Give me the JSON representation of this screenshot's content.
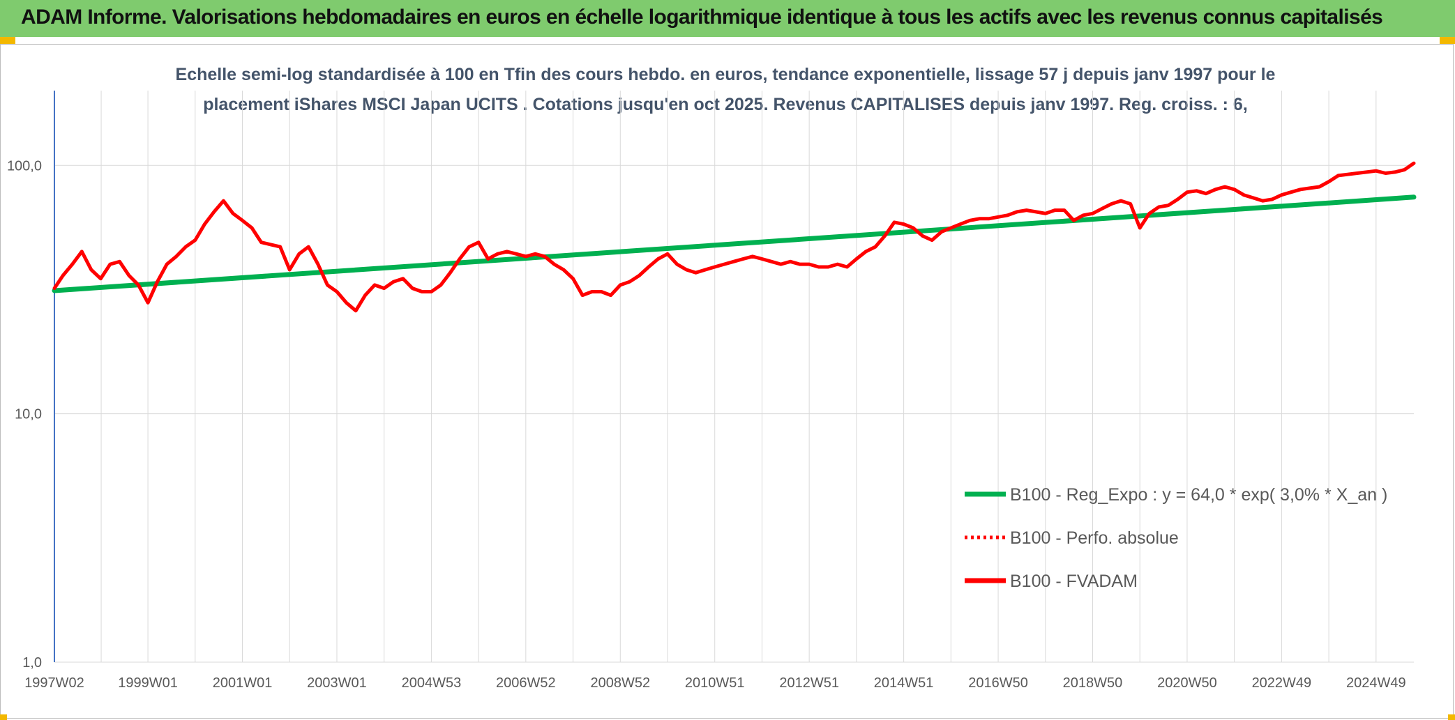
{
  "header": {
    "title": "ADAM Informe. Valorisations hebdomadaires en euros en échelle logarithmique identique à tous les actifs avec les revenus connus capitalisés"
  },
  "colors": {
    "header_bg": "#7fcb6e",
    "corner_accent": "#f3b800",
    "trend_green": "#00b050",
    "series_red": "#ff0000",
    "grid": "#d9d9d9",
    "axis_blue": "#4472c4",
    "subtitle": "#44546a"
  },
  "chart_data": {
    "type": "line",
    "subtitle_lines": [
      "Echelle semi-log standardisée à 100 en Tfin des cours hebdo. en euros, tendance exponentielle, lissage 57 j depuis janv 1997 pour le",
      "placement iShares MSCI Japan UCITS . Cotations jusqu'en oct 2025. Revenus CAPITALISES depuis janv 1997. Reg. croiss. : 6,"
    ],
    "y_scale": "log",
    "ylim": [
      1,
      200
    ],
    "y_ticks": [
      {
        "value": 100,
        "label": "100,0"
      },
      {
        "value": 10,
        "label": "10,0"
      },
      {
        "value": 1,
        "label": "1,0"
      }
    ],
    "xlim": [
      1997.02,
      2025.8
    ],
    "x_ticks": [
      {
        "value": 1997.02,
        "label": "1997W02"
      },
      {
        "value": 1999.0,
        "label": "1999W01"
      },
      {
        "value": 2001.0,
        "label": "2001W01"
      },
      {
        "value": 2003.0,
        "label": "2003W01"
      },
      {
        "value": 2005.0,
        "label": "2004W53"
      },
      {
        "value": 2007.0,
        "label": "2006W52"
      },
      {
        "value": 2009.0,
        "label": "2008W52"
      },
      {
        "value": 2011.0,
        "label": "2010W51"
      },
      {
        "value": 2013.0,
        "label": "2012W51"
      },
      {
        "value": 2015.0,
        "label": "2014W51"
      },
      {
        "value": 2017.0,
        "label": "2016W50"
      },
      {
        "value": 2019.0,
        "label": "2018W50"
      },
      {
        "value": 2021.0,
        "label": "2020W50"
      },
      {
        "value": 2023.0,
        "label": "2022W49"
      },
      {
        "value": 2025.0,
        "label": "2024W49"
      }
    ],
    "legend_position": "bottom-right",
    "grid": true,
    "series": [
      {
        "name": "B100 - Reg_Expo : y = 64,0 * exp( 3,0% *  X_an )",
        "color": "#00b050",
        "style": "solid",
        "x": [
          1997.02,
          2025.8
        ],
        "y": [
          31.3,
          74.5
        ]
      },
      {
        "name": "B100 - Perfo. absolue",
        "color": "#ff0000",
        "style": "dotted",
        "x": [],
        "y": []
      },
      {
        "name": "B100 - FVADAM",
        "color": "#ff0000",
        "style": "solid",
        "x": [
          1997.02,
          1997.2,
          1997.4,
          1997.6,
          1997.8,
          1998.0,
          1998.2,
          1998.4,
          1998.6,
          1998.8,
          1999.0,
          1999.2,
          1999.4,
          1999.6,
          1999.8,
          2000.0,
          2000.2,
          2000.4,
          2000.6,
          2000.8,
          2001.0,
          2001.2,
          2001.4,
          2001.6,
          2001.8,
          2002.0,
          2002.2,
          2002.4,
          2002.6,
          2002.8,
          2003.0,
          2003.2,
          2003.4,
          2003.6,
          2003.8,
          2004.0,
          2004.2,
          2004.4,
          2004.6,
          2004.8,
          2005.0,
          2005.2,
          2005.4,
          2005.6,
          2005.8,
          2006.0,
          2006.2,
          2006.4,
          2006.6,
          2006.8,
          2007.0,
          2007.2,
          2007.4,
          2007.6,
          2007.8,
          2008.0,
          2008.2,
          2008.4,
          2008.6,
          2008.8,
          2009.0,
          2009.2,
          2009.4,
          2009.6,
          2009.8,
          2010.0,
          2010.2,
          2010.4,
          2010.6,
          2010.8,
          2011.0,
          2011.2,
          2011.4,
          2011.6,
          2011.8,
          2012.0,
          2012.2,
          2012.4,
          2012.6,
          2012.8,
          2013.0,
          2013.2,
          2013.4,
          2013.6,
          2013.8,
          2014.0,
          2014.2,
          2014.4,
          2014.6,
          2014.8,
          2015.0,
          2015.2,
          2015.4,
          2015.6,
          2015.8,
          2016.0,
          2016.2,
          2016.4,
          2016.6,
          2016.8,
          2017.0,
          2017.2,
          2017.4,
          2017.6,
          2017.8,
          2018.0,
          2018.2,
          2018.4,
          2018.6,
          2018.8,
          2019.0,
          2019.2,
          2019.4,
          2019.6,
          2019.8,
          2020.0,
          2020.2,
          2020.4,
          2020.6,
          2020.8,
          2021.0,
          2021.2,
          2021.4,
          2021.6,
          2021.8,
          2022.0,
          2022.2,
          2022.4,
          2022.6,
          2022.8,
          2023.0,
          2023.2,
          2023.4,
          2023.6,
          2023.8,
          2024.0,
          2024.2,
          2024.4,
          2024.6,
          2024.8,
          2025.0,
          2025.2,
          2025.4,
          2025.6,
          2025.8
        ],
        "y": [
          32,
          36,
          40,
          45,
          38,
          35,
          40,
          41,
          36,
          33,
          28,
          34,
          40,
          43,
          47,
          50,
          58,
          65,
          72,
          64,
          60,
          56,
          49,
          48,
          47,
          38,
          44,
          47,
          40,
          33,
          31,
          28,
          26,
          30,
          33,
          32,
          34,
          35,
          32,
          31,
          31,
          33,
          37,
          42,
          47,
          49,
          42,
          44,
          45,
          44,
          43,
          44,
          43,
          40,
          38,
          35,
          30,
          31,
          31,
          30,
          33,
          34,
          36,
          39,
          42,
          44,
          40,
          38,
          37,
          38,
          39,
          40,
          41,
          42,
          43,
          42,
          41,
          40,
          41,
          40,
          40,
          39,
          39,
          40,
          39,
          42,
          45,
          47,
          52,
          59,
          58,
          56,
          52,
          50,
          54,
          56,
          58,
          60,
          61,
          61,
          62,
          63,
          65,
          66,
          65,
          64,
          66,
          66,
          60,
          63,
          64,
          67,
          70,
          72,
          70,
          56,
          64,
          68,
          69,
          73,
          78,
          79,
          77,
          80,
          82,
          80,
          76,
          74,
          72,
          73,
          76,
          78,
          80,
          81,
          82,
          86,
          91,
          92,
          93,
          94,
          95,
          93,
          94,
          96,
          102
        ]
      }
    ]
  }
}
